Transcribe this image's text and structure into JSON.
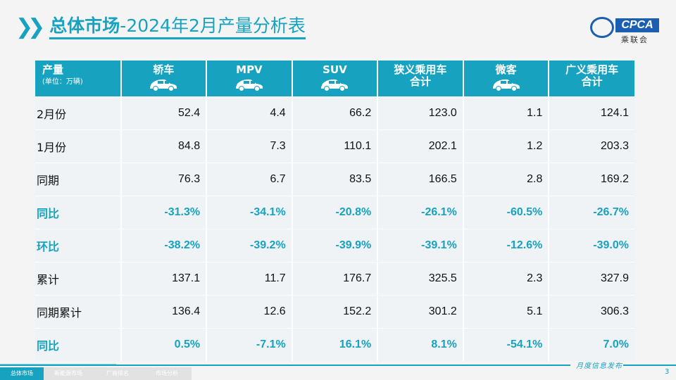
{
  "header": {
    "title_bold": "总体市场",
    "title_rest": "-2024年2月产量分析表",
    "logo_text": "CPCA",
    "logo_cn": "乘联会"
  },
  "table": {
    "corner": {
      "label": "产量",
      "unit": "(单位：万辆)"
    },
    "columns": [
      {
        "label": "轿车",
        "icon": "sedan-icon"
      },
      {
        "label": "MPV",
        "icon": "mpv-icon"
      },
      {
        "label": "SUV",
        "icon": "suv-icon"
      },
      {
        "label": "狭义乘用车\n合计"
      },
      {
        "label": "微客",
        "icon": "minivan-icon"
      },
      {
        "label": "广义乘用车\n合计"
      }
    ],
    "rows": [
      {
        "label": "2月份",
        "values": [
          "52.4",
          "4.4",
          "66.2",
          "123.0",
          "1.1",
          "124.1"
        ],
        "highlight": false
      },
      {
        "label": "1月份",
        "values": [
          "84.8",
          "7.3",
          "110.1",
          "202.1",
          "1.2",
          "203.3"
        ],
        "highlight": false
      },
      {
        "label": "同期",
        "values": [
          "76.3",
          "6.7",
          "83.5",
          "166.5",
          "2.8",
          "169.2"
        ],
        "highlight": false
      },
      {
        "label": "同比",
        "values": [
          "-31.3%",
          "-34.1%",
          "-20.8%",
          "-26.1%",
          "-60.5%",
          "-26.7%"
        ],
        "highlight": true
      },
      {
        "label": "环比",
        "values": [
          "-38.2%",
          "-39.2%",
          "-39.9%",
          "-39.1%",
          "-12.6%",
          "-39.0%"
        ],
        "highlight": true
      },
      {
        "label": "累计",
        "values": [
          "137.1",
          "11.7",
          "176.7",
          "325.5",
          "2.3",
          "327.9"
        ],
        "highlight": false
      },
      {
        "label": "同期累计",
        "values": [
          "136.4",
          "12.6",
          "152.2",
          "301.2",
          "5.1",
          "306.3"
        ],
        "highlight": false
      },
      {
        "label": "同比",
        "values": [
          "0.5%",
          "-7.1%",
          "16.1%",
          "8.1%",
          "-54.1%",
          "7.0%"
        ],
        "highlight": true
      }
    ]
  },
  "footer": {
    "tabs": [
      "总体市场",
      "新能源市场",
      "厂商排名",
      "市场分析"
    ],
    "active_tab": 0,
    "publish": "月度信息发布",
    "page": "3"
  },
  "colors": {
    "accent": "#17a2c0"
  }
}
